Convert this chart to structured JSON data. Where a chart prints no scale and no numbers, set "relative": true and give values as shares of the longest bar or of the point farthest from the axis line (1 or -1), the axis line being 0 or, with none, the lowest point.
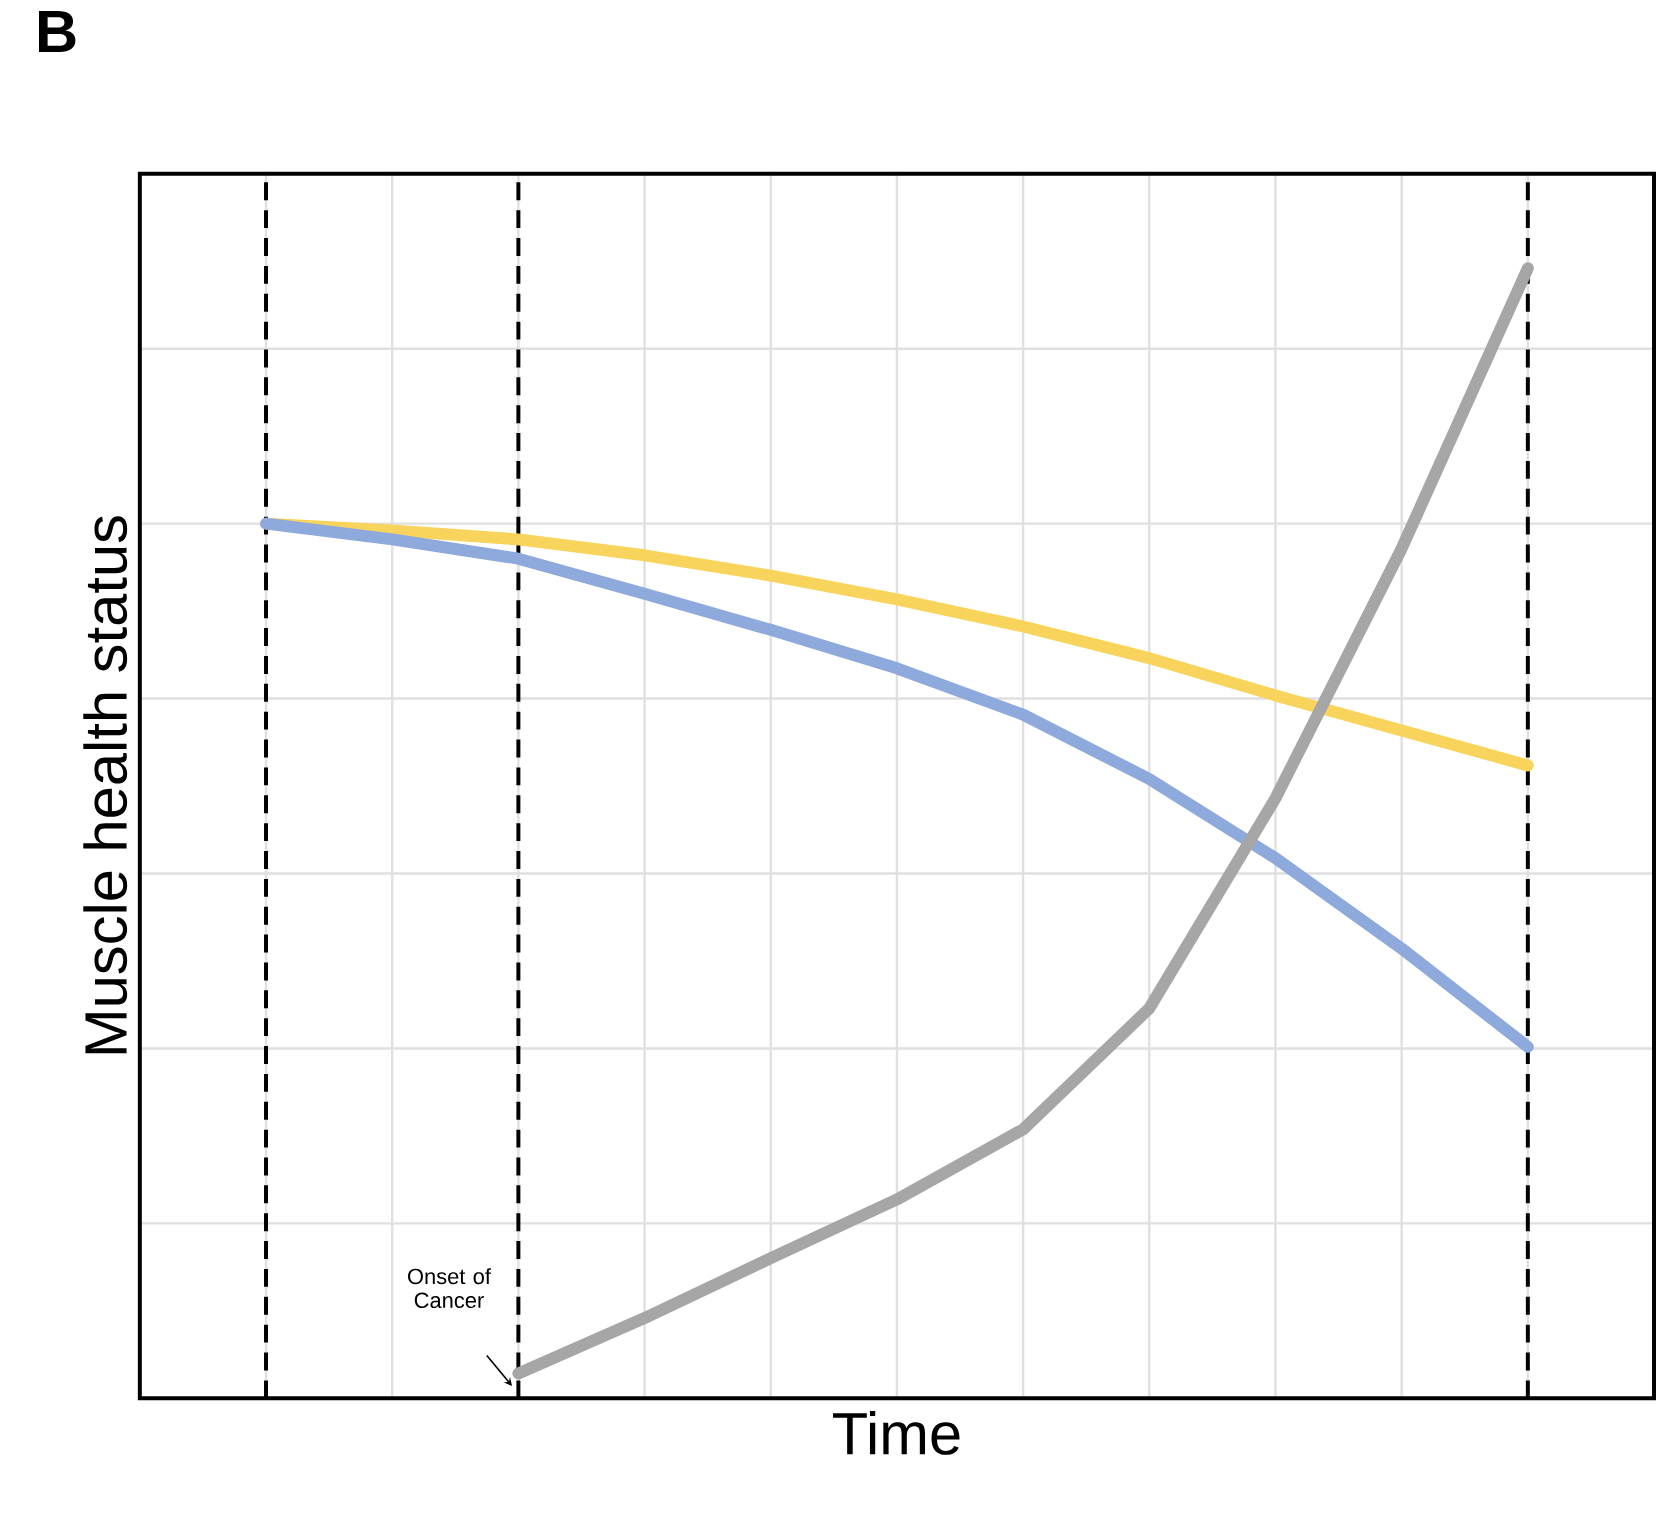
{
  "chart_data": {
    "type": "line",
    "title": "B",
    "xlabel": "Time",
    "ylabel": "Muscle health status",
    "relative": true,
    "grid": true,
    "categories": [
      null,
      null,
      null,
      null,
      null,
      null,
      null,
      null,
      null,
      null,
      null
    ],
    "series": [
      {
        "color": "#f9d45c",
        "values": [
          0.774,
          0.768,
          0.76,
          0.746,
          0.728,
          0.707,
          0.683,
          0.655,
          0.622,
          0.591,
          0.56
        ]
      },
      {
        "color": "#8ea9db",
        "values": [
          0.774,
          0.76,
          0.743,
          0.712,
          0.68,
          0.646,
          0.605,
          0.548,
          0.478,
          0.398,
          0.311
        ]
      },
      {
        "color": "#a6a6a6",
        "values": [
          null,
          null,
          0.022,
          0.071,
          0.124,
          0.176,
          0.238,
          0.345,
          0.531,
          0.752,
          1.0
        ]
      }
    ],
    "annotations": [
      "Onset of Cancer"
    ]
  }
}
